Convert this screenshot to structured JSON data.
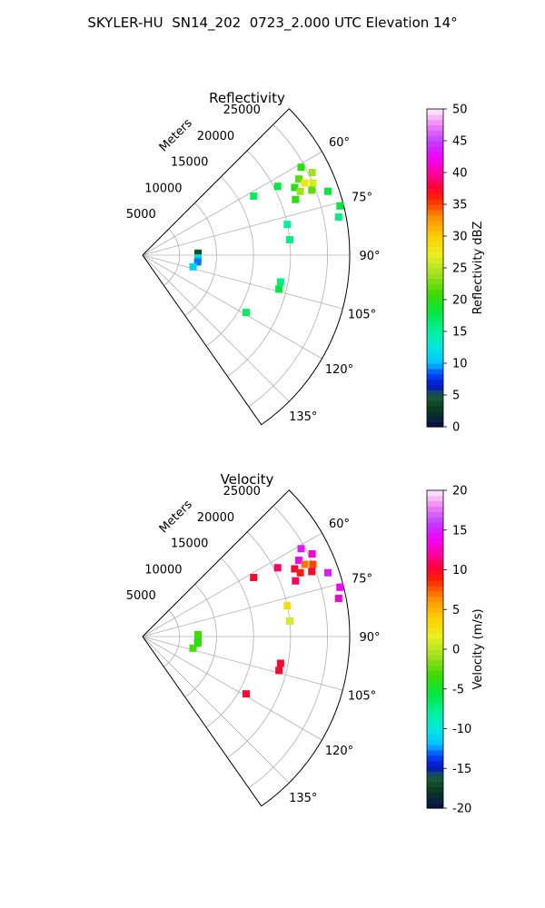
{
  "title": "SKYLER-HU  SN14_202  0723_2.000 UTC Elevation 14°",
  "chart_data": [
    {
      "type": "heatmap",
      "title": "Reflectivity",
      "projection": "polar sector (azimuth vs range)",
      "range_label": "Meters",
      "range_ticks": [
        "5000",
        "10000",
        "15000",
        "20000",
        "25000"
      ],
      "range_max": 28000,
      "azimuth_range_deg": [
        45,
        145
      ],
      "azimuth_ticks": [
        "60°",
        "75°",
        "90°",
        "105°",
        "120°",
        "135°"
      ],
      "colorbar": {
        "label": "Reflectivity dBZ",
        "min": 0,
        "max": 50,
        "ticks": [
          "0",
          "5",
          "10",
          "15",
          "20",
          "25",
          "30",
          "35",
          "40",
          "45",
          "50"
        ]
      },
      "echoes": [
        {
          "azimuth": 61,
          "range": 24500,
          "value": 20
        },
        {
          "azimuth": 64,
          "range": 23500,
          "value": 22
        },
        {
          "azimuth": 64,
          "range": 25500,
          "value": 24
        },
        {
          "azimuth": 66,
          "range": 22500,
          "value": 20
        },
        {
          "azimuth": 66,
          "range": 24000,
          "value": 28
        },
        {
          "azimuth": 67,
          "range": 25000,
          "value": 26
        },
        {
          "azimuth": 68,
          "range": 23000,
          "value": 24
        },
        {
          "azimuth": 69,
          "range": 24500,
          "value": 22
        },
        {
          "azimuth": 70,
          "range": 22000,
          "value": 20
        },
        {
          "azimuth": 71,
          "range": 26500,
          "value": 18
        },
        {
          "azimuth": 76,
          "range": 27500,
          "value": 18
        },
        {
          "azimuth": 79,
          "range": 27000,
          "value": 16
        },
        {
          "azimuth": 63,
          "range": 20500,
          "value": 18
        },
        {
          "azimuth": 62,
          "range": 17000,
          "value": 17
        },
        {
          "azimuth": 78,
          "range": 20000,
          "value": 15
        },
        {
          "azimuth": 84,
          "range": 20000,
          "value": 16
        },
        {
          "azimuth": 101,
          "range": 19000,
          "value": 16
        },
        {
          "azimuth": 104,
          "range": 19000,
          "value": 18
        },
        {
          "azimuth": 88,
          "range": 7500,
          "value": 4
        },
        {
          "azimuth": 93,
          "range": 7500,
          "value": 14
        },
        {
          "azimuth": 95,
          "range": 7500,
          "value": 11
        },
        {
          "azimuth": 97,
          "range": 7500,
          "value": 9
        },
        {
          "azimuth": 103,
          "range": 7000,
          "value": 11
        },
        {
          "azimuth": 119,
          "range": 16000,
          "value": 17
        }
      ]
    },
    {
      "type": "heatmap",
      "title": "Velocity",
      "projection": "polar sector (azimuth vs range)",
      "range_label": "Meters",
      "range_ticks": [
        "5000",
        "10000",
        "15000",
        "20000",
        "25000"
      ],
      "range_max": 28000,
      "azimuth_range_deg": [
        45,
        145
      ],
      "azimuth_ticks": [
        "60°",
        "75°",
        "90°",
        "105°",
        "120°",
        "135°"
      ],
      "colorbar": {
        "label": "Velocity (m/s)",
        "min": -20,
        "max": 20,
        "ticks": [
          "-20",
          "-15",
          "-10",
          "-5",
          "0",
          "5",
          "10",
          "15",
          "20"
        ]
      },
      "echoes": [
        {
          "azimuth": 61,
          "range": 24500,
          "value": 15
        },
        {
          "azimuth": 64,
          "range": 23500,
          "value": 14
        },
        {
          "azimuth": 64,
          "range": 25500,
          "value": 13
        },
        {
          "azimuth": 66,
          "range": 22500,
          "value": 10
        },
        {
          "azimuth": 66,
          "range": 24000,
          "value": 7
        },
        {
          "azimuth": 67,
          "range": 25000,
          "value": 8
        },
        {
          "azimuth": 68,
          "range": 23000,
          "value": 9
        },
        {
          "azimuth": 69,
          "range": 24500,
          "value": 10
        },
        {
          "azimuth": 70,
          "range": 22000,
          "value": 11
        },
        {
          "azimuth": 71,
          "range": 26500,
          "value": 15
        },
        {
          "azimuth": 76,
          "range": 27500,
          "value": 14
        },
        {
          "azimuth": 79,
          "range": 27000,
          "value": 13
        },
        {
          "azimuth": 63,
          "range": 20500,
          "value": 11
        },
        {
          "azimuth": 62,
          "range": 17000,
          "value": 10
        },
        {
          "azimuth": 78,
          "range": 20000,
          "value": 3
        },
        {
          "azimuth": 84,
          "range": 20000,
          "value": 1
        },
        {
          "azimuth": 101,
          "range": 19000,
          "value": 10
        },
        {
          "azimuth": 104,
          "range": 19000,
          "value": 10
        },
        {
          "azimuth": 88,
          "range": 7500,
          "value": -3
        },
        {
          "azimuth": 93,
          "range": 7500,
          "value": -3
        },
        {
          "azimuth": 95,
          "range": 7500,
          "value": -4
        },
        {
          "azimuth": 97,
          "range": 7500,
          "value": -4
        },
        {
          "azimuth": 103,
          "range": 7000,
          "value": -3
        },
        {
          "azimuth": 119,
          "range": 16000,
          "value": 10
        }
      ]
    }
  ]
}
